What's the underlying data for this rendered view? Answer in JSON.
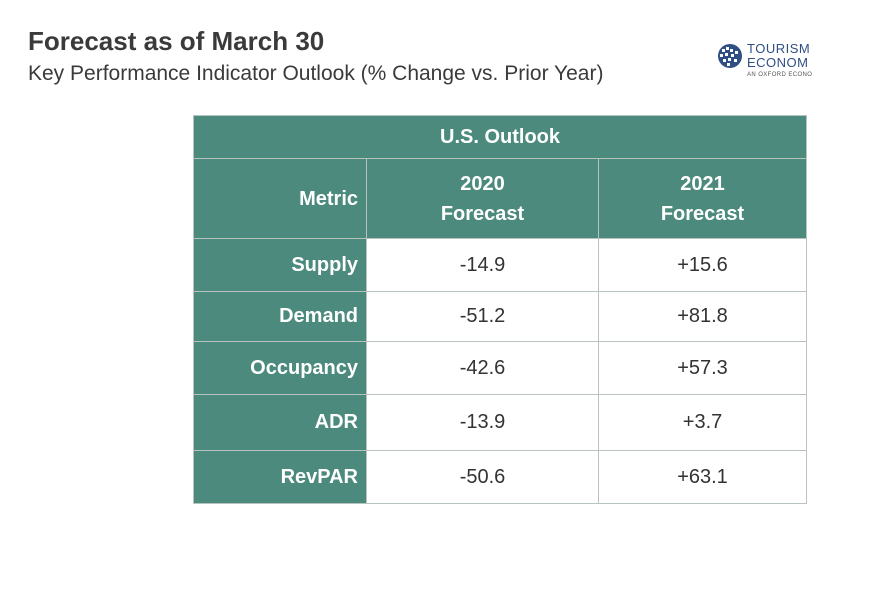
{
  "header": {
    "title": "Forecast as of March 30",
    "subtitle": "Key Performance Indicator Outlook (% Change vs. Prior Year)"
  },
  "logo": {
    "icon": "globe-icon",
    "line1": "TOURISM",
    "line2": "ECONOM",
    "line3": "AN OXFORD ECONO",
    "color": "#2f4f84"
  },
  "table": {
    "title": "U.S. Outlook",
    "columns": {
      "metric": "Metric",
      "col2020_line1": "2020",
      "col2020_line2": "Forecast",
      "col2021_line1": "2021",
      "col2021_line2": "Forecast"
    },
    "rows": [
      {
        "metric": "Supply",
        "v2020": "-14.9",
        "v2021": "+15.6"
      },
      {
        "metric": "Demand",
        "v2020": "-51.2",
        "v2021": "+81.8"
      },
      {
        "metric": "Occupancy",
        "v2020": "-42.6",
        "v2021": "+57.3"
      },
      {
        "metric": "ADR",
        "v2020": "-13.9",
        "v2021": "+3.7"
      },
      {
        "metric": "RevPAR",
        "v2020": "-50.6",
        "v2021": "+63.1"
      }
    ],
    "header_color": "#4b8a7c"
  }
}
